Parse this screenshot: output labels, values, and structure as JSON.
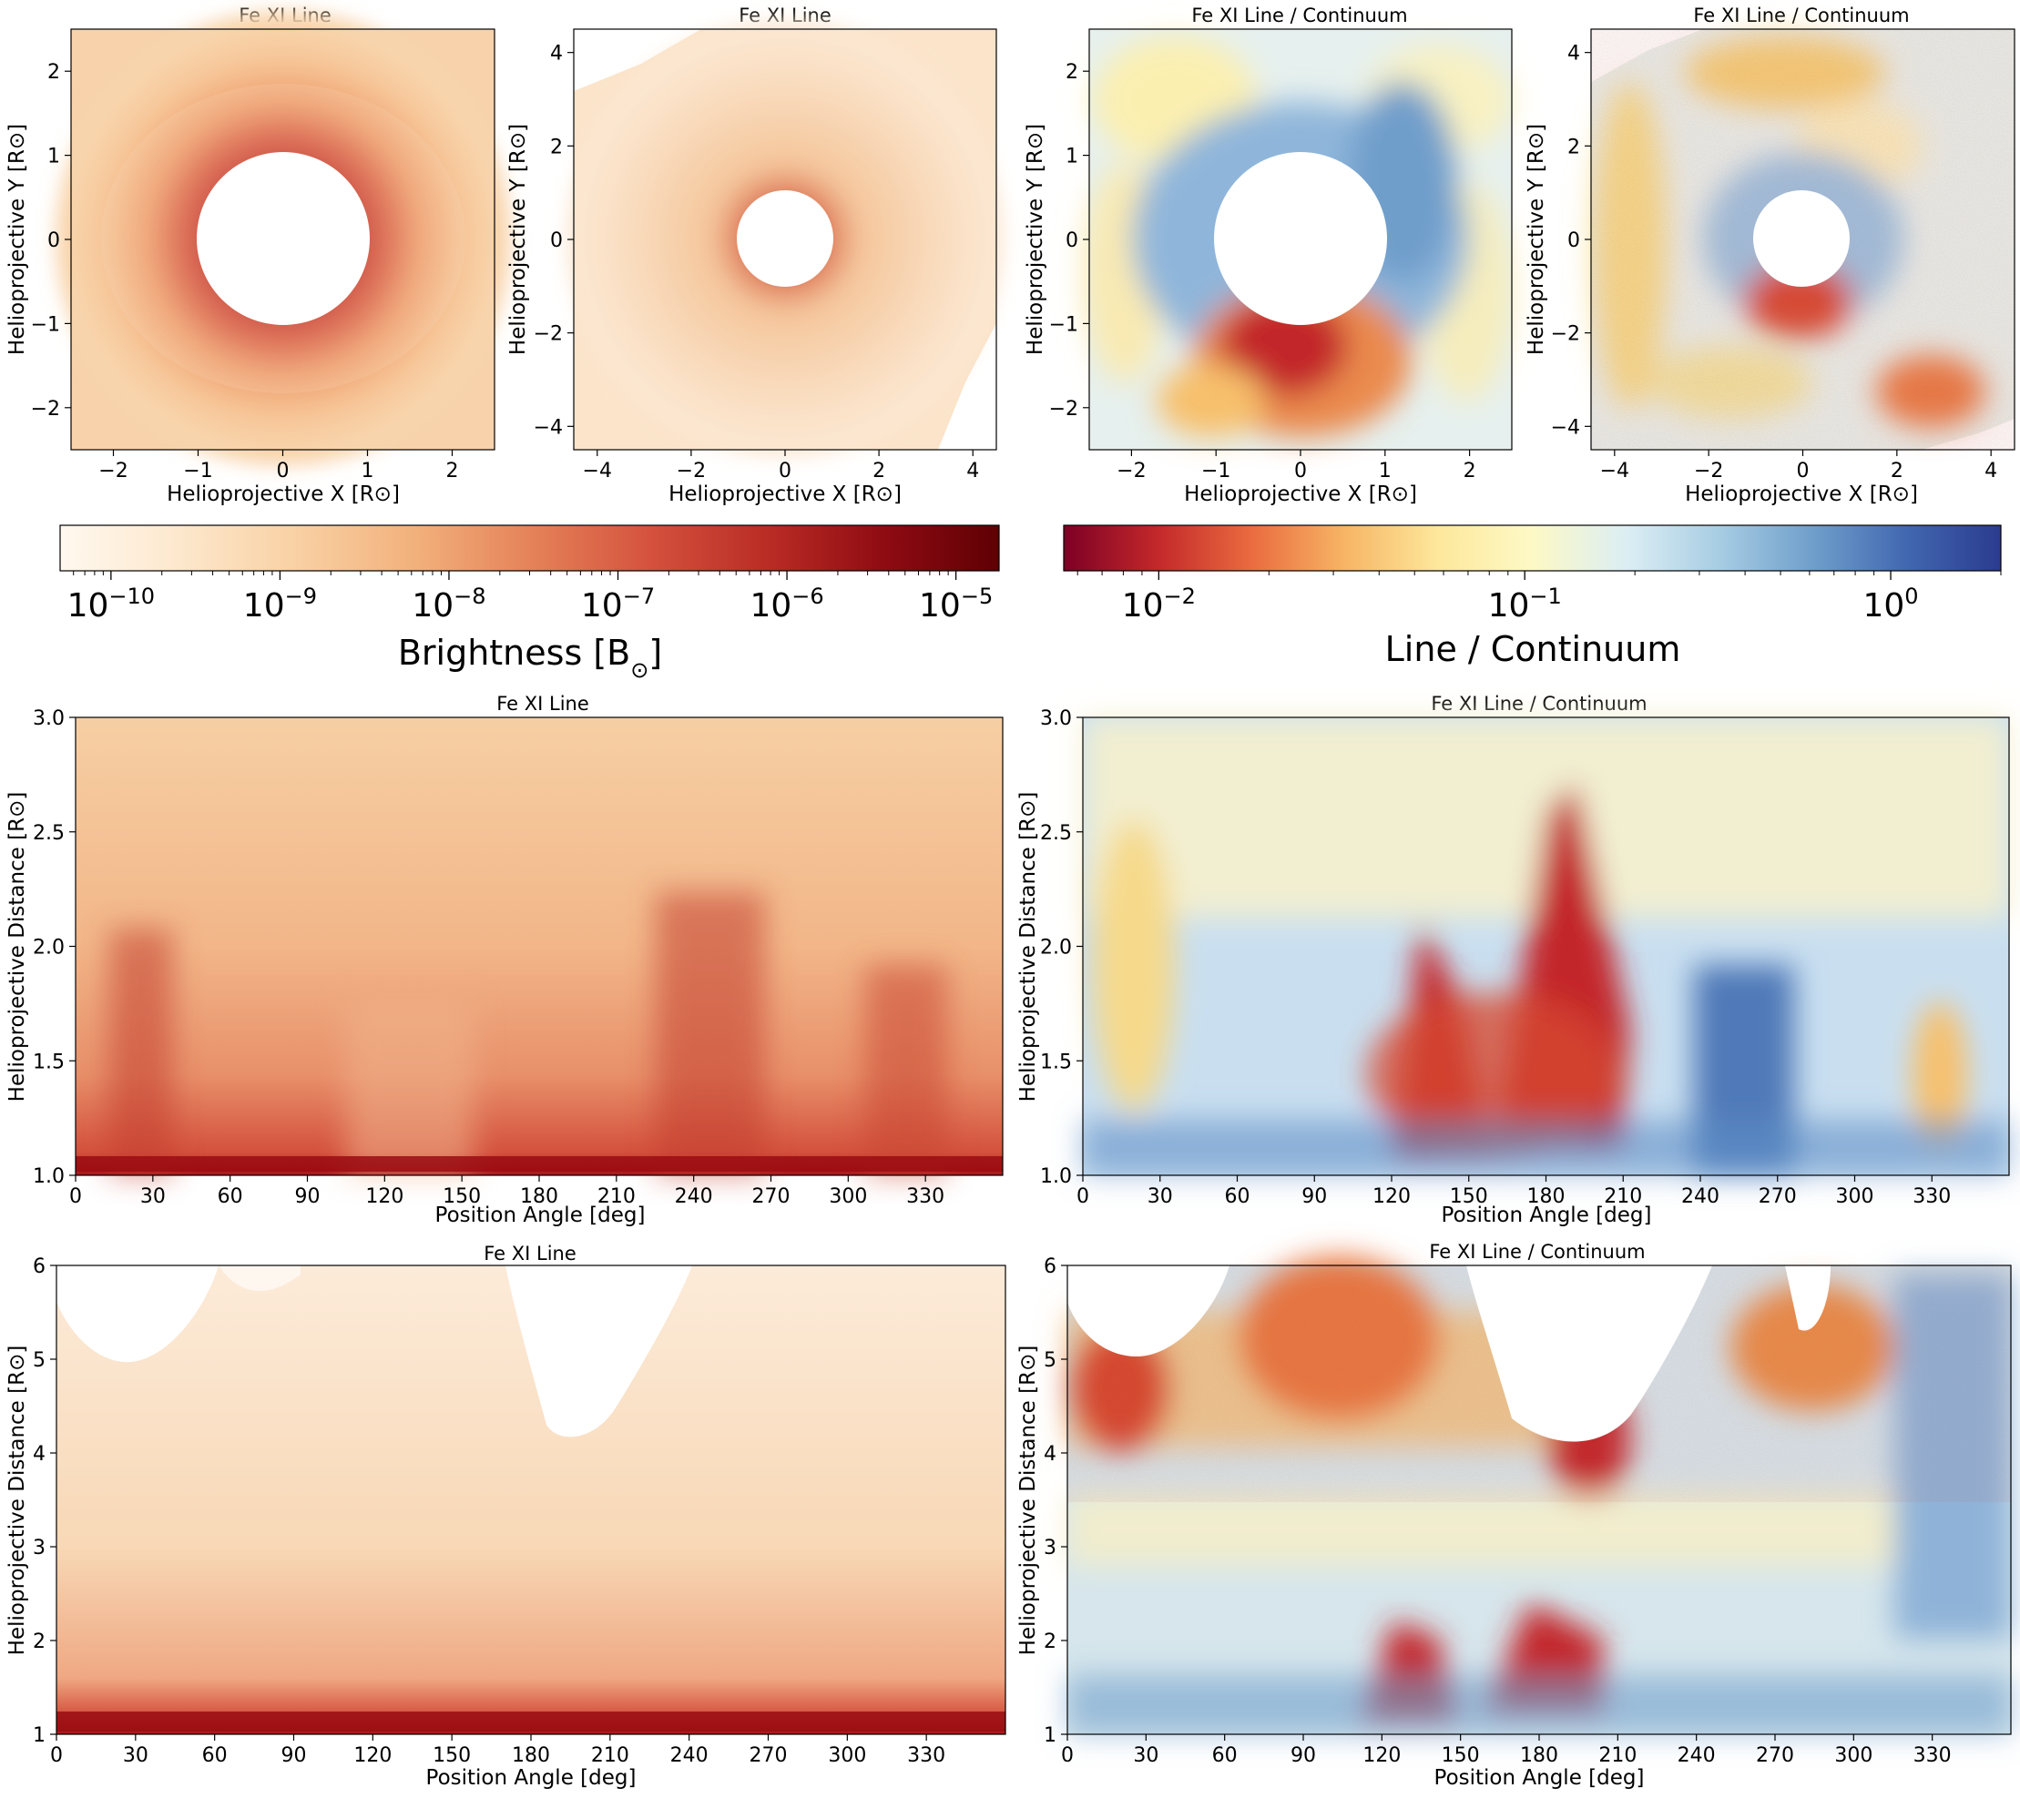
{
  "colors": {
    "bright_ramp": [
      "#fff8ef",
      "#fde9cf",
      "#f9d1a4",
      "#f2b07b",
      "#e58359",
      "#d4513d",
      "#b82a24",
      "#8e0b12",
      "#5e0004"
    ],
    "ratio_ramp": [
      "#7d0025",
      "#c3282a",
      "#ea6b3f",
      "#f7b565",
      "#fde89c",
      "#fdf9c6",
      "#dceef4",
      "#a7cde3",
      "#6f9ecb",
      "#4167b0",
      "#2b3b8f"
    ],
    "background": "#ffffff",
    "axis": "#000000"
  },
  "chart_data": [
    {
      "id": "p1",
      "type": "heatmap",
      "title": "Fe XI Line",
      "xlabel": "Helioprojective X [R⊙]",
      "ylabel": "Helioprojective Y [R⊙]",
      "xlim": [
        -2.5,
        2.5
      ],
      "ylim": [
        -2.5,
        2.5
      ],
      "xticks": [
        -2,
        -1,
        0,
        1,
        2
      ],
      "yticks": [
        -2,
        -1,
        0,
        1,
        2
      ],
      "xtick_labels": [
        "−2",
        "−1",
        "0",
        "1",
        "2"
      ],
      "ytick_labels": [
        "−2",
        "−1",
        "0",
        "1",
        "2"
      ],
      "occulter_radius": 1.02,
      "colormap": "bright"
    },
    {
      "id": "p2",
      "type": "heatmap",
      "title": "Fe XI Line",
      "xlabel": "Helioprojective X [R⊙]",
      "ylabel": "Helioprojective Y [R⊙]",
      "xlim": [
        -4.5,
        4.5
      ],
      "ylim": [
        -4.5,
        4.5
      ],
      "xticks": [
        -4,
        -2,
        0,
        2,
        4
      ],
      "yticks": [
        -4,
        -2,
        0,
        2,
        4
      ],
      "xtick_labels": [
        "−4",
        "−2",
        "0",
        "2",
        "4"
      ],
      "ytick_labels": [
        "−4",
        "−2",
        "0",
        "2",
        "4"
      ],
      "occulter_radius": 1.02,
      "colormap": "bright"
    },
    {
      "id": "p3",
      "type": "heatmap",
      "title": "Fe XI Line / Continuum",
      "xlabel": "Helioprojective X [R⊙]",
      "ylabel": "Helioprojective Y [R⊙]",
      "xlim": [
        -2.5,
        2.5
      ],
      "ylim": [
        -2.5,
        2.5
      ],
      "xticks": [
        -2,
        -1,
        0,
        1,
        2
      ],
      "yticks": [
        -2,
        -1,
        0,
        1,
        2
      ],
      "xtick_labels": [
        "−2",
        "−1",
        "0",
        "1",
        "2"
      ],
      "ytick_labels": [
        "−2",
        "−1",
        "0",
        "1",
        "2"
      ],
      "occulter_radius": 1.02,
      "colormap": "ratio"
    },
    {
      "id": "p4",
      "type": "heatmap",
      "title": "Fe XI Line / Continuum",
      "xlabel": "Helioprojective X [R⊙]",
      "ylabel": "Helioprojective Y [R⊙]",
      "xlim": [
        -4.5,
        4.5
      ],
      "ylim": [
        -4.5,
        4.5
      ],
      "xticks": [
        -4,
        -2,
        0,
        2,
        4
      ],
      "yticks": [
        -4,
        -2,
        0,
        2,
        4
      ],
      "xtick_labels": [
        "−4",
        "−2",
        "0",
        "2",
        "4"
      ],
      "ytick_labels": [
        "−4",
        "−2",
        "0",
        "2",
        "4"
      ],
      "occulter_radius": 1.02,
      "colormap": "ratio"
    },
    {
      "id": "p5",
      "type": "heatmap",
      "title": "Fe XI Line",
      "xlabel": "Position Angle [deg]",
      "ylabel": "Helioprojective Distance [R⊙]",
      "xlim": [
        0,
        360
      ],
      "ylim": [
        1.0,
        3.0
      ],
      "xticks": [
        0,
        30,
        60,
        90,
        120,
        150,
        180,
        210,
        240,
        270,
        300,
        330
      ],
      "yticks": [
        1.0,
        1.5,
        2.0,
        2.5,
        3.0
      ],
      "xtick_labels": [
        "0",
        "30",
        "60",
        "90",
        "120",
        "150",
        "180",
        "210",
        "240",
        "270",
        "300",
        "330"
      ],
      "ytick_labels": [
        "1.0",
        "1.5",
        "2.0",
        "2.5",
        "3.0"
      ],
      "colormap": "bright"
    },
    {
      "id": "p6",
      "type": "heatmap",
      "title": "Fe XI Line / Continuum",
      "xlabel": "Position Angle [deg]",
      "ylabel": "Helioprojective Distance [R⊙]",
      "xlim": [
        0,
        360
      ],
      "ylim": [
        1.0,
        3.0
      ],
      "xticks": [
        0,
        30,
        60,
        90,
        120,
        150,
        180,
        210,
        240,
        270,
        300,
        330
      ],
      "yticks": [
        1.0,
        1.5,
        2.0,
        2.5,
        3.0
      ],
      "xtick_labels": [
        "0",
        "30",
        "60",
        "90",
        "120",
        "150",
        "180",
        "210",
        "240",
        "270",
        "300",
        "330"
      ],
      "ytick_labels": [
        "1.0",
        "1.5",
        "2.0",
        "2.5",
        "3.0"
      ],
      "colormap": "ratio"
    },
    {
      "id": "p7",
      "type": "heatmap",
      "title": "Fe XI Line",
      "xlabel": "Position Angle [deg]",
      "ylabel": "Helioprojective Distance [R⊙]",
      "xlim": [
        0,
        360
      ],
      "ylim": [
        1,
        6
      ],
      "xticks": [
        0,
        30,
        60,
        90,
        120,
        150,
        180,
        210,
        240,
        270,
        300,
        330
      ],
      "yticks": [
        1,
        2,
        3,
        4,
        5,
        6
      ],
      "xtick_labels": [
        "0",
        "30",
        "60",
        "90",
        "120",
        "150",
        "180",
        "210",
        "240",
        "270",
        "300",
        "330"
      ],
      "ytick_labels": [
        "1",
        "2",
        "3",
        "4",
        "5",
        "6"
      ],
      "colormap": "bright"
    },
    {
      "id": "p8",
      "type": "heatmap",
      "title": "Fe XI Line / Continuum",
      "xlabel": "Position Angle [deg]",
      "ylabel": "Helioprojective Distance [R⊙]",
      "xlim": [
        0,
        360
      ],
      "ylim": [
        1,
        6
      ],
      "xticks": [
        0,
        30,
        60,
        90,
        120,
        150,
        180,
        210,
        240,
        270,
        300,
        330
      ],
      "yticks": [
        1,
        2,
        3,
        4,
        5,
        6
      ],
      "xtick_labels": [
        "0",
        "30",
        "60",
        "90",
        "120",
        "150",
        "180",
        "210",
        "240",
        "270",
        "300",
        "330"
      ],
      "ytick_labels": [
        "1",
        "2",
        "3",
        "4",
        "5",
        "6"
      ],
      "colormap": "ratio"
    }
  ],
  "colorbars": [
    {
      "id": "cb1",
      "label": "Brightness [B⊙]",
      "scale": "log",
      "range": [
        5e-11,
        1.8e-05
      ],
      "ticks": [
        1e-10,
        1e-09,
        1e-08,
        1e-07,
        1e-06,
        1e-05
      ],
      "tick_labels": [
        {
          "base": "10",
          "exp": "−10"
        },
        {
          "base": "10",
          "exp": "−9"
        },
        {
          "base": "10",
          "exp": "−8"
        },
        {
          "base": "10",
          "exp": "−7"
        },
        {
          "base": "10",
          "exp": "−6"
        },
        {
          "base": "10",
          "exp": "−5"
        }
      ],
      "colormap": "bright"
    },
    {
      "id": "cb2",
      "label": "Line / Continuum",
      "scale": "log",
      "range": [
        0.0055,
        2.0
      ],
      "ticks": [
        0.01,
        0.1,
        1
      ],
      "tick_labels": [
        {
          "base": "10",
          "exp": "−2"
        },
        {
          "base": "10",
          "exp": "−1"
        },
        {
          "base": "10",
          "exp": "0"
        }
      ],
      "colormap": "ratio"
    }
  ]
}
